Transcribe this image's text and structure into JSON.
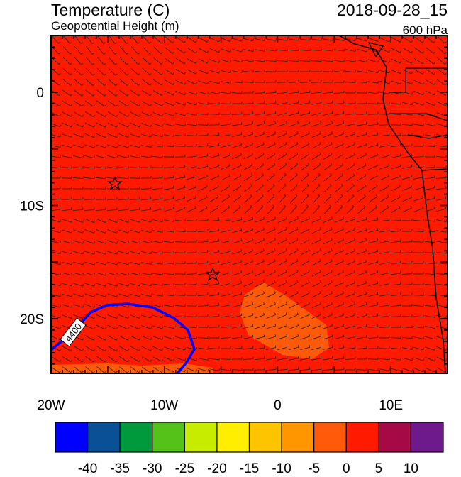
{
  "header": {
    "title": "Temperature (C)",
    "subtitle": "Geopotential Height (m)",
    "date": "2018-09-28_15",
    "level": "600 hPa"
  },
  "map": {
    "lat_labels": [
      "0",
      "10S",
      "20S"
    ],
    "lon_labels": [
      "20W",
      "10W",
      "0",
      "10E"
    ],
    "contour_label": "4400"
  },
  "colorbar": {
    "colors": [
      "#0000ff",
      "#0a5096",
      "#009a3c",
      "#55c21a",
      "#c8ec00",
      "#ffee00",
      "#ffc400",
      "#ff9600",
      "#ff5a0a",
      "#ff1a00",
      "#a50a46",
      "#6e1a8c"
    ],
    "labels": [
      "-40",
      "-35",
      "-30",
      "-25",
      "-20",
      "-15",
      "-10",
      "-5",
      "0",
      "5",
      "10"
    ]
  }
}
